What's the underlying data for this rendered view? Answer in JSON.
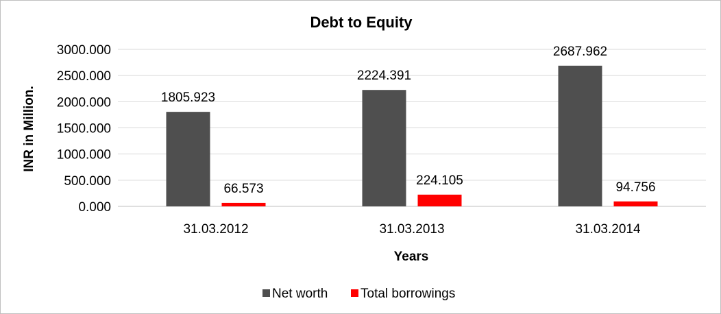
{
  "chart_data": {
    "type": "bar",
    "title": "Debt to Equity",
    "xlabel": "Years",
    "ylabel": "INR in Million.",
    "categories": [
      "31.03.2012",
      "31.03.2013",
      "31.03.2014"
    ],
    "series": [
      {
        "name": "Net worth",
        "color": "#4f4f4f",
        "values": [
          1805.923,
          2224.391,
          2687.962
        ],
        "labels": [
          "1805.923",
          "2224.391",
          "2687.962"
        ]
      },
      {
        "name": "Total borrowings",
        "color": "#ff0000",
        "values": [
          66.573,
          224.105,
          94.756
        ],
        "labels": [
          "66.573",
          "224.105",
          "94.756"
        ]
      }
    ],
    "ylim": [
      0,
      3000
    ],
    "yticks": [
      {
        "value": 0,
        "label": "0.000"
      },
      {
        "value": 500,
        "label": "500.000"
      },
      {
        "value": 1000,
        "label": "1000.000"
      },
      {
        "value": 1500,
        "label": "1500.000"
      },
      {
        "value": 2000,
        "label": "2000.000"
      },
      {
        "value": 2500,
        "label": "2500.000"
      },
      {
        "value": 3000,
        "label": "3000.000"
      }
    ],
    "grid": true,
    "legend_position": "bottom"
  }
}
